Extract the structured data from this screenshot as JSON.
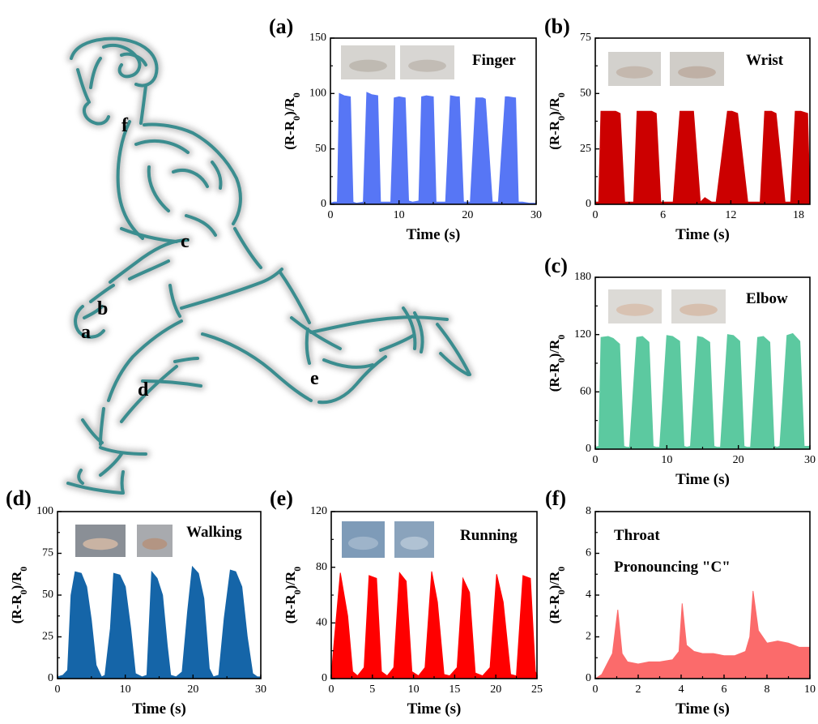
{
  "figure": {
    "panel_labels": [
      "(a)",
      "(b)",
      "(c)",
      "(d)",
      "(e)",
      "(f)"
    ],
    "body_points": [
      "a",
      "b",
      "c",
      "d",
      "e",
      "f"
    ]
  },
  "chart_data": [
    {
      "id": "a",
      "type": "area",
      "panel": "(a)",
      "annotation": "Finger",
      "annotation2": "",
      "xlabel": "Time (s)",
      "ylabel": "(R-R0)/R0",
      "xlim": [
        0,
        30
      ],
      "ylim": [
        0,
        150
      ],
      "xticks": [
        0,
        10,
        20,
        30
      ],
      "yticks": [
        0,
        50,
        100,
        150
      ],
      "color": "#5776f5",
      "x": [
        0,
        0.5,
        1.0,
        1.3,
        2.0,
        2.9,
        3.3,
        3.8,
        4.8,
        5.3,
        6.0,
        6.9,
        7.3,
        8.3,
        8.8,
        9.3,
        10.0,
        10.9,
        11.4,
        12.0,
        12.9,
        13.3,
        14.0,
        15.0,
        15.4,
        16.4,
        16.8,
        17.5,
        18.4,
        18.8,
        19.4,
        19.9,
        20.4,
        21.2,
        22.2,
        22.6,
        23.6,
        24.0,
        24.5,
        25.5,
        25.9,
        27.0,
        27.4,
        28.0,
        29.0,
        29.4,
        30.0
      ],
      "y": [
        1,
        2,
        2,
        100,
        98,
        97,
        2,
        1,
        2,
        101,
        99,
        98,
        2,
        2,
        2,
        96,
        97,
        96,
        3,
        2,
        3,
        97,
        98,
        97,
        2,
        2,
        2,
        98,
        97,
        97,
        2,
        2,
        2,
        96,
        96,
        95,
        2,
        2,
        2,
        97,
        97,
        96,
        2,
        2,
        1,
        1,
        1
      ]
    },
    {
      "id": "b",
      "type": "area",
      "panel": "(b)",
      "annotation": "Wrist",
      "annotation2": "",
      "xlabel": "Time (s)",
      "ylabel": "(R-R0)/R0",
      "xlim": [
        0,
        19
      ],
      "ylim": [
        0,
        75
      ],
      "xticks": [
        0,
        6,
        12,
        18
      ],
      "yticks": [
        0,
        25,
        50,
        75
      ],
      "color": "#cc0000",
      "x": [
        0,
        0.3,
        0.5,
        1.1,
        1.8,
        2.2,
        2.6,
        3.0,
        3.4,
        3.7,
        4.6,
        5.0,
        5.4,
        5.8,
        6.5,
        6.9,
        7.5,
        8.3,
        8.7,
        9.3,
        9.7,
        10.3,
        10.7,
        11.7,
        12.1,
        12.6,
        13.5,
        13.9,
        14.6,
        15.0,
        15.6,
        16.0,
        16.8,
        17.3,
        17.7,
        18.2,
        18.8,
        19.0
      ],
      "y": [
        1,
        1,
        42,
        42,
        42,
        41,
        1,
        1,
        1,
        42,
        42,
        42,
        41,
        1,
        1,
        1,
        42,
        42,
        42,
        1,
        3,
        1,
        1,
        42,
        42,
        41,
        1,
        1,
        1,
        42,
        42,
        41,
        1,
        1,
        42,
        42,
        41,
        1
      ]
    },
    {
      "id": "c",
      "type": "area",
      "panel": "(c)",
      "annotation": "Elbow",
      "annotation2": "",
      "xlabel": "Time (s)",
      "ylabel": "(R-R0)/R0",
      "xlim": [
        0,
        30
      ],
      "ylim": [
        0,
        180
      ],
      "xticks": [
        0,
        10,
        20,
        30
      ],
      "yticks": [
        0,
        60,
        120,
        180
      ],
      "color": "#5cc9a0",
      "x": [
        0,
        0.5,
        0.8,
        1.8,
        2.5,
        3.4,
        4.0,
        4.4,
        4.8,
        5.8,
        6.6,
        7.5,
        8.1,
        8.5,
        9.0,
        10.0,
        10.8,
        11.8,
        12.4,
        12.8,
        13.3,
        14.3,
        15.0,
        16.0,
        16.6,
        17.0,
        17.5,
        18.5,
        19.3,
        20.2,
        20.8,
        21.2,
        21.7,
        22.7,
        23.5,
        24.4,
        25.0,
        25.4,
        25.8,
        26.8,
        27.6,
        28.6,
        29.2,
        29.6,
        30.0
      ],
      "y": [
        2,
        3,
        117,
        118,
        116,
        110,
        3,
        2,
        2,
        117,
        118,
        112,
        3,
        2,
        2,
        119,
        118,
        113,
        3,
        2,
        3,
        118,
        117,
        112,
        3,
        2,
        2,
        120,
        119,
        113,
        3,
        2,
        2,
        117,
        118,
        112,
        3,
        2,
        3,
        119,
        121,
        113,
        3,
        3,
        3
      ]
    },
    {
      "id": "d",
      "type": "area",
      "panel": "(d)",
      "annotation": "Walking",
      "annotation2": "",
      "xlabel": "Time (s)",
      "ylabel": "(R-R0)/R0",
      "xlim": [
        0,
        30
      ],
      "ylim": [
        0,
        100
      ],
      "xticks": [
        0,
        10,
        20,
        30
      ],
      "yticks": [
        0,
        25,
        50,
        75,
        100
      ],
      "color": "#1565a8",
      "x": [
        0,
        0.8,
        1.5,
        2.0,
        2.6,
        3.5,
        4.3,
        5.0,
        5.7,
        6.5,
        7.0,
        7.8,
        8.3,
        9.2,
        10.0,
        10.8,
        11.5,
        12.5,
        13.2,
        13.9,
        14.7,
        15.5,
        16.2,
        16.7,
        17.5,
        18.4,
        19.2,
        19.9,
        20.8,
        21.6,
        22.4,
        23.0,
        23.8,
        24.6,
        25.5,
        26.3,
        27.2,
        28.0,
        28.8,
        29.5,
        30.0
      ],
      "y": [
        1,
        2,
        5,
        50,
        64,
        63,
        55,
        35,
        8,
        1,
        2,
        30,
        63,
        62,
        55,
        30,
        3,
        1,
        2,
        64,
        60,
        50,
        20,
        2,
        1,
        4,
        40,
        67,
        63,
        48,
        6,
        1,
        2,
        36,
        65,
        64,
        55,
        25,
        3,
        1,
        1
      ]
    },
    {
      "id": "e",
      "type": "area",
      "panel": "(e)",
      "annotation": "Running",
      "annotation2": "",
      "xlabel": "Time (s)",
      "ylabel": "(R-R0)/R0",
      "xlim": [
        0,
        25
      ],
      "ylim": [
        0,
        120
      ],
      "xticks": [
        0,
        5,
        10,
        15,
        20,
        25
      ],
      "yticks": [
        0,
        40,
        80,
        120
      ],
      "color": "#ff0000",
      "x": [
        0,
        0.4,
        1.1,
        2.0,
        2.6,
        3.2,
        4.0,
        4.6,
        5.5,
        6.1,
        6.8,
        7.6,
        8.3,
        9.1,
        9.8,
        10.6,
        11.4,
        12.2,
        12.9,
        13.7,
        14.4,
        15.3,
        16.0,
        16.8,
        17.5,
        18.4,
        19.3,
        20.1,
        20.9,
        21.8,
        22.5,
        23.3,
        24.2,
        24.8,
        25.0
      ],
      "y": [
        2,
        30,
        76,
        45,
        5,
        2,
        8,
        74,
        72,
        5,
        2,
        8,
        76,
        70,
        5,
        2,
        8,
        77,
        55,
        3,
        2,
        8,
        72,
        62,
        4,
        2,
        8,
        75,
        55,
        3,
        2,
        74,
        72,
        5,
        3
      ]
    },
    {
      "id": "f",
      "type": "area",
      "panel": "(f)",
      "annotation": "Throat",
      "annotation2": "Pronouncing \"C\"",
      "xlabel": "Time (s)",
      "ylabel": "(R-R0)/R0",
      "xlim": [
        0,
        10
      ],
      "ylim": [
        0,
        8
      ],
      "xticks": [
        0,
        2,
        4,
        6,
        8,
        10
      ],
      "yticks": [
        0,
        2,
        4,
        6,
        8
      ],
      "color": "#fb6b6b",
      "x": [
        0,
        0.3,
        0.6,
        0.8,
        1.05,
        1.25,
        1.5,
        2.0,
        2.5,
        3.0,
        3.6,
        3.9,
        4.05,
        4.25,
        4.6,
        5.0,
        5.5,
        6.0,
        6.5,
        7.0,
        7.2,
        7.35,
        7.6,
        8.0,
        8.5,
        9.0,
        9.5,
        10.0
      ],
      "y": [
        0,
        0.2,
        0.8,
        1.2,
        3.3,
        1.2,
        0.8,
        0.7,
        0.8,
        0.8,
        0.9,
        1.3,
        3.6,
        1.6,
        1.3,
        1.2,
        1.2,
        1.1,
        1.1,
        1.3,
        2.0,
        4.2,
        2.3,
        1.7,
        1.8,
        1.7,
        1.5,
        1.5
      ]
    }
  ]
}
